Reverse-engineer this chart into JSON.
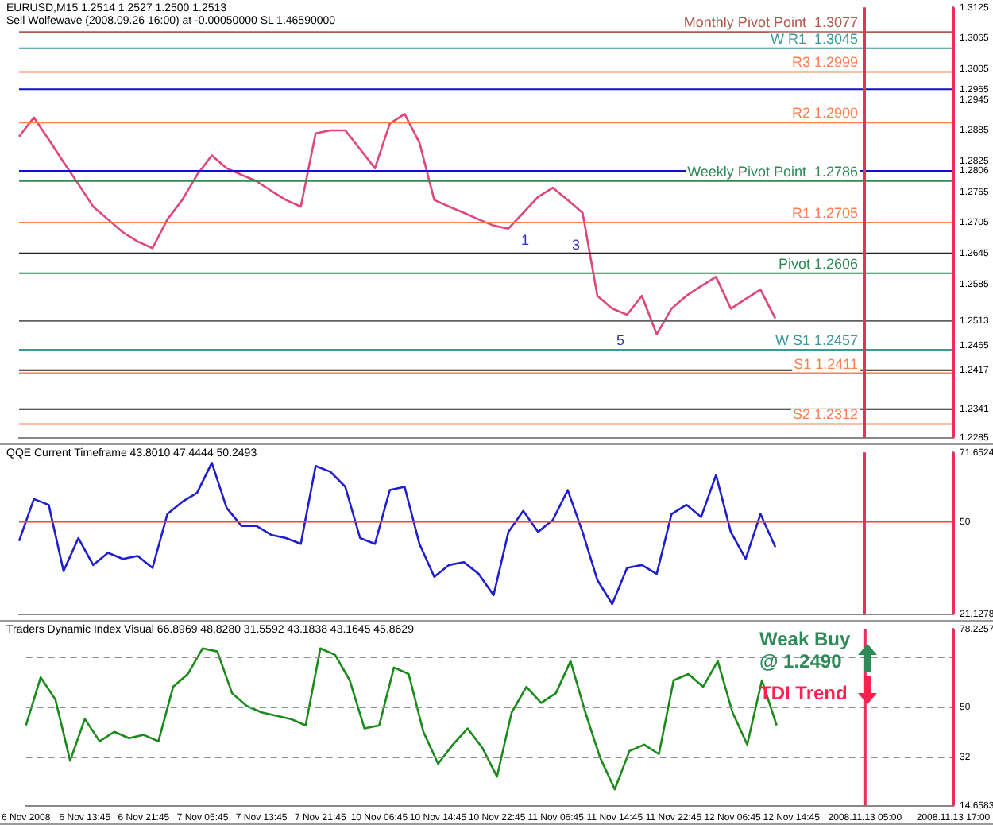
{
  "chart_data": [
    {
      "type": "line",
      "title": "EURUSD,M15  1.2514 1.2527 1.2500 1.2513",
      "subtitle": "Sell Wolfewave (2008.09.26 16:00) at -0.00050000 SL 1.46590000",
      "categories": [
        "6 Nov 2008",
        null,
        null,
        null,
        "6 Nov 13:45",
        null,
        null,
        null,
        "6 Nov 21:45",
        null,
        null,
        null,
        "7 Nov 05:45",
        null,
        null,
        null,
        "7 Nov 13:45",
        null,
        null,
        null,
        "7 Nov 21:45",
        null,
        null,
        null,
        "10 Nov 06:45",
        null,
        null,
        null,
        "10 Nov 14:45",
        null,
        null,
        null,
        "10 Nov 22:45",
        null,
        null,
        null,
        "11 Nov 06:45",
        null,
        null,
        null,
        "11 Nov 14:45",
        null,
        null,
        null,
        "11 Nov 22:45",
        null,
        null,
        null,
        "12 Nov 06:45",
        null,
        null,
        null,
        "12 Nov 14:45",
        null,
        null,
        null,
        null,
        "2008.11.13 05:00",
        null,
        null,
        null,
        null,
        null,
        "2008.11.13 17:00"
      ],
      "series": [
        {
          "color": "#e0457b",
          "values": [
            1.2873,
            1.291,
            1.2867,
            1.2823,
            1.278,
            1.2736,
            1.2711,
            1.2686,
            1.2668,
            1.2655,
            1.2711,
            1.2749,
            1.2798,
            1.2836,
            1.2811,
            1.2798,
            1.2786,
            1.2767,
            1.2749,
            1.2736,
            1.2879,
            1.2885,
            1.2885,
            1.2848,
            1.2811,
            1.2898,
            1.2917,
            1.2861,
            1.2749,
            1.2736,
            1.2724,
            1.2711,
            1.2699,
            1.2693,
            1.2724,
            1.2755,
            1.2773,
            1.2749,
            1.2724,
            1.2562,
            1.2537,
            1.2525,
            1.2562,
            1.2487,
            1.2537,
            1.2562,
            1.2581,
            1.2599,
            1.2537,
            1.2556,
            1.2574,
            1.2518,
            null,
            null,
            null,
            null,
            null,
            null,
            null,
            null,
            null,
            null,
            null,
            null
          ]
        }
      ],
      "ylim": [
        1.2285,
        1.3125
      ],
      "yticks": [
        1.3125,
        1.3065,
        1.3005,
        {
          "value": 1.2965,
          "label": "1.2965"
        },
        1.2945,
        1.2885,
        1.2825,
        {
          "value": 1.2806,
          "label": "1.2806"
        },
        1.2765,
        1.2705,
        1.2645,
        1.2585,
        {
          "value": 1.2513,
          "label": "1.2513"
        },
        1.2465,
        {
          "value": 1.2417,
          "label": "1.2417"
        },
        {
          "value": 1.2341,
          "label": "1.2341"
        },
        1.2285
      ],
      "tick_labels": "y",
      "ref_lines": [
        {
          "axis": "y",
          "value": 1.3077,
          "label": "Monthly Pivot Point  1.3077",
          "color": "#b05a50"
        },
        {
          "axis": "y",
          "value": 1.3045,
          "label": "W R1  1.3045",
          "color": "#3a9a9a"
        },
        {
          "axis": "y",
          "value": 1.2999,
          "label": "R3 1.2999",
          "color": "#ff7f50"
        },
        {
          "axis": "y",
          "value": 1.29,
          "label": "R2 1.2900",
          "color": "#ff7f50"
        },
        {
          "axis": "y",
          "value": 1.2786,
          "label": "Weekly Pivot Point  1.2786",
          "color": "#2e8b57"
        },
        {
          "axis": "y",
          "value": 1.2705,
          "label": "R1 1.2705",
          "color": "#ff7f50"
        },
        {
          "axis": "y",
          "value": 1.2606,
          "label": "Pivot 1.2606",
          "color": "#2e8b57"
        },
        {
          "axis": "y",
          "value": 1.2457,
          "label": "W S1 1.2457",
          "color": "#3a9a9a"
        },
        {
          "axis": "y",
          "value": 1.2411,
          "label": "S1 1.2411",
          "color": "#ff7f50"
        },
        {
          "axis": "y",
          "value": 1.2312,
          "label": "S2 1.2312",
          "color": "#ff7f50"
        },
        {
          "axis": "y",
          "value": 1.2965,
          "color": "#1010d0"
        },
        {
          "axis": "y",
          "value": 1.2806,
          "color": "#1010d0"
        },
        {
          "axis": "y",
          "value": 1.2645,
          "color": "#202020"
        },
        {
          "axis": "y",
          "value": 1.2513,
          "color": "#606060"
        },
        {
          "axis": "y",
          "value": 1.2417,
          "color": "#202020"
        },
        {
          "axis": "y",
          "value": 1.2341,
          "color": "#202020"
        },
        {
          "axis": "x",
          "value": "2008.11.13 05:00",
          "color": "#e8305a"
        },
        {
          "axis": "x",
          "value": "2008.11.13 17:00",
          "color": "#e8305a"
        }
      ],
      "annotations": [
        "1",
        "3",
        "5"
      ]
    },
    {
      "type": "line",
      "title": "QQE Current Timeframe 43.8010 47.4444 50.2493",
      "categories": [
        "6 Nov 2008",
        null,
        null,
        null,
        "6 Nov 13:45",
        null,
        null,
        null,
        "6 Nov 21:45",
        null,
        null,
        null,
        "7 Nov 05:45",
        null,
        null,
        null,
        "7 Nov 13:45",
        null,
        null,
        null,
        "7 Nov 21:45",
        null,
        null,
        null,
        "10 Nov 06:45",
        null,
        null,
        null,
        "10 Nov 14:45",
        null,
        null,
        null,
        "10 Nov 22:45",
        null,
        null,
        null,
        "11 Nov 06:45",
        null,
        null,
        null,
        "11 Nov 14:45",
        null,
        null,
        null,
        "11 Nov 22:45",
        null,
        null,
        null,
        "12 Nov 06:45",
        null,
        null,
        null,
        "12 Nov 14:45",
        null,
        null,
        null,
        null,
        "2008.11.13 05:00",
        null,
        null,
        null,
        null,
        null,
        "2008.11.13 17:00"
      ],
      "series": [
        {
          "color": "#1f1fd0",
          "values": [
            44.0,
            57.1,
            55.3,
            34.6,
            44.9,
            36.5,
            40.3,
            38.4,
            39.3,
            35.6,
            52.4,
            56.2,
            59.0,
            68.4,
            54.3,
            48.7,
            48.7,
            45.9,
            44.9,
            43.1,
            67.4,
            65.6,
            60.9,
            44.9,
            43.1,
            59.9,
            60.9,
            43.1,
            32.8,
            36.5,
            37.4,
            33.7,
            27.1,
            46.8,
            53.4,
            46.8,
            50.6,
            59.9,
            46.8,
            31.8,
            24.3,
            35.6,
            36.5,
            33.7,
            52.4,
            55.3,
            51.5,
            64.6,
            46.8,
            38.4,
            52.4,
            42.1,
            null,
            null,
            null,
            null,
            null,
            null,
            null,
            null,
            null,
            null,
            null,
            null
          ]
        }
      ],
      "ylim": [
        21.1278,
        71.6524
      ],
      "yticks": [
        21.1278,
        50,
        71.6524
      ],
      "tick_labels": "y",
      "ref_lines": [
        {
          "axis": "y",
          "value": 50,
          "color": "#ff4040"
        },
        {
          "axis": "x",
          "value": "2008.11.13 05:00",
          "color": "#e8305a"
        },
        {
          "axis": "x",
          "value": "2008.11.13 17:00",
          "color": "#e8305a"
        }
      ]
    },
    {
      "type": "line",
      "title": "Traders Dynamic Index Visual 66.8969 48.8280 31.5592 43.1838 43.1645 45.8629",
      "categories": [
        "6 Nov 2008",
        null,
        null,
        null,
        "6 Nov 13:45",
        null,
        null,
        null,
        "6 Nov 21:45",
        null,
        null,
        null,
        "7 Nov 05:45",
        null,
        null,
        null,
        "7 Nov 13:45",
        null,
        null,
        null,
        "7 Nov 21:45",
        null,
        null,
        null,
        "10 Nov 06:45",
        null,
        null,
        null,
        "10 Nov 14:45",
        null,
        null,
        null,
        "10 Nov 22:45",
        null,
        null,
        null,
        "11 Nov 06:45",
        null,
        null,
        null,
        "11 Nov 14:45",
        null,
        null,
        null,
        "11 Nov 22:45",
        null,
        null,
        null,
        "12 Nov 06:45",
        null,
        null,
        null,
        "12 Nov 14:45",
        null,
        null,
        null,
        null,
        "2008.11.13 05:00",
        null,
        null,
        null,
        null,
        null,
        "2008.11.13 17:00"
      ],
      "series": [
        {
          "color": "#1a8a1a",
          "values": [
            43.5,
            60.8,
            52.8,
            30.8,
            45.8,
            37.8,
            41.2,
            38.9,
            40.1,
            37.8,
            57.4,
            62.0,
            71.2,
            70.1,
            55.1,
            50.5,
            48.2,
            47.0,
            45.8,
            43.5,
            71.2,
            68.9,
            59.7,
            42.4,
            43.5,
            64.3,
            62.0,
            41.2,
            29.7,
            36.6,
            42.4,
            35.5,
            25.1,
            48.2,
            57.4,
            51.6,
            55.1,
            66.6,
            48.2,
            32.0,
            20.5,
            34.3,
            36.6,
            33.2,
            59.7,
            62.0,
            57.4,
            66.6,
            48.2,
            36.6,
            59.7,
            43.5,
            null,
            null,
            null,
            null,
            null,
            null,
            null,
            null,
            null,
            null,
            null,
            null
          ]
        }
      ],
      "ylim": [
        14.6583,
        78.2257
      ],
      "yticks": [
        14.6583,
        32,
        50,
        {
          "value": 68,
          "label": null
        },
        78.2257
      ],
      "ref_lines": [
        {
          "axis": "y",
          "value": 68,
          "color": "#909090",
          "line_style": "dashed"
        },
        {
          "axis": "y",
          "value": 50,
          "color": "#909090",
          "line_style": "dashed"
        },
        {
          "axis": "y",
          "value": 32,
          "color": "#909090",
          "line_style": "dashed"
        },
        {
          "axis": "x",
          "value": "2008.11.13 05:00",
          "color": "#e8305a"
        },
        {
          "axis": "x",
          "value": "2008.11.13 17:00",
          "color": "#e8305a"
        }
      ],
      "annotations": [
        "Weak Buy @ 1.2490",
        "TDI Trend"
      ]
    }
  ]
}
